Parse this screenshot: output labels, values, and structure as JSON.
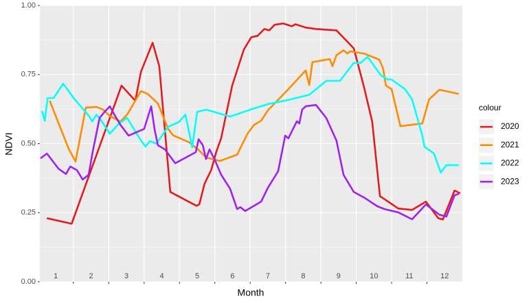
{
  "chart_data": {
    "type": "line",
    "x_label": "Month",
    "y_label": "NDVI",
    "legend_title": "colour",
    "legend": "right",
    "xlim": [
      0.55,
      12.5
    ],
    "xticks": [
      1,
      2,
      3,
      4,
      5,
      6,
      7,
      8,
      9,
      10,
      11,
      12
    ],
    "ylim": [
      0,
      1
    ],
    "yticks": [
      {
        "value": 0,
        "label": "0.00"
      },
      {
        "value": 0.25,
        "label": "0.25"
      },
      {
        "value": 0.5,
        "label": "0.50"
      },
      {
        "value": 0.75,
        "label": "0.75"
      },
      {
        "value": 1,
        "label": "1.00"
      }
    ],
    "grid": true,
    "series": [
      {
        "name": "2020",
        "color": "#e41a1c",
        "x": [
          0.75,
          1.45,
          2.86,
          3.25,
          3.41,
          3.74,
          3.93,
          4.24,
          4.98,
          5.06,
          5.21,
          5.4,
          5.54,
          5.68,
          5.99,
          6.32,
          6.53,
          6.71,
          6.9,
          7.04,
          7.19,
          7.43,
          7.68,
          7.78,
          8.07,
          8.36,
          8.94,
          9.43,
          9.72,
          9.95,
          10.17,
          10.4,
          10.69,
          11.08,
          11.47,
          11.82,
          11.95,
          12.28,
          12.44
        ],
        "values": [
          0.23,
          0.21,
          0.71,
          0.655,
          0.76,
          0.865,
          0.78,
          0.325,
          0.275,
          0.28,
          0.355,
          0.405,
          0.47,
          0.52,
          0.71,
          0.84,
          0.885,
          0.89,
          0.915,
          0.91,
          0.93,
          0.935,
          0.925,
          0.932,
          0.92,
          0.915,
          0.91,
          0.845,
          0.705,
          0.58,
          0.31,
          0.29,
          0.265,
          0.26,
          0.29,
          0.23,
          0.225,
          0.33,
          0.32
        ]
      },
      {
        "name": "2021",
        "color": "#ff8c00",
        "x": [
          0.83,
          1.37,
          1.56,
          1.85,
          2.15,
          2.34,
          2.53,
          2.83,
          3.02,
          3.41,
          3.6,
          3.89,
          4.18,
          4.32,
          4.77,
          5.06,
          5.25,
          5.64,
          6.13,
          6.42,
          6.61,
          6.81,
          7.0,
          7.58,
          8.07,
          8.17,
          8.26,
          8.75,
          8.83,
          8.94,
          9.14,
          9.25,
          9.33,
          9.72,
          10.15,
          10.26,
          10.34,
          10.5,
          10.75,
          11.37,
          11.56,
          11.85,
          12.4
        ],
        "values": [
          0.655,
          0.48,
          0.435,
          0.63,
          0.633,
          0.623,
          0.6,
          0.58,
          0.605,
          0.69,
          0.68,
          0.645,
          0.553,
          0.53,
          0.505,
          0.475,
          0.45,
          0.437,
          0.46,
          0.535,
          0.568,
          0.583,
          0.62,
          0.697,
          0.765,
          0.712,
          0.795,
          0.806,
          0.78,
          0.82,
          0.838,
          0.826,
          0.834,
          0.826,
          0.804,
          0.772,
          0.71,
          0.697,
          0.563,
          0.573,
          0.66,
          0.695,
          0.68
        ]
      },
      {
        "name": "2022",
        "color": "#00ffff",
        "x": [
          0.61,
          0.69,
          0.77,
          0.94,
          1.21,
          1.52,
          1.95,
          2.03,
          2.15,
          2.28,
          2.53,
          2.79,
          3.02,
          3.41,
          3.54,
          3.66,
          3.85,
          4.18,
          4.48,
          4.67,
          4.86,
          5.0,
          5.25,
          5.93,
          6.51,
          7.0,
          7.58,
          8.17,
          8.65,
          9.04,
          9.43,
          9.62,
          9.82,
          10.2,
          10.4,
          10.5,
          10.88,
          11.08,
          11.37,
          11.43,
          11.7,
          11.89,
          12.05,
          12.4
        ],
        "values": [
          0.618,
          0.583,
          0.665,
          0.665,
          0.717,
          0.663,
          0.598,
          0.58,
          0.605,
          0.585,
          0.536,
          0.573,
          0.593,
          0.511,
          0.489,
          0.509,
          0.5,
          0.561,
          0.578,
          0.605,
          0.486,
          0.615,
          0.623,
          0.598,
          0.623,
          0.643,
          0.658,
          0.677,
          0.727,
          0.727,
          0.792,
          0.792,
          0.814,
          0.747,
          0.732,
          0.732,
          0.697,
          0.66,
          0.529,
          0.489,
          0.464,
          0.395,
          0.422,
          0.422
        ]
      },
      {
        "name": "2023",
        "color": "#a020f0",
        "x": [
          0.57,
          0.75,
          1.08,
          1.29,
          1.41,
          1.6,
          1.76,
          1.93,
          2.05,
          2.24,
          2.38,
          2.53,
          2.69,
          2.83,
          3.06,
          3.5,
          3.7,
          3.8,
          3.89,
          4.09,
          4.38,
          4.96,
          5.04,
          5.16,
          5.25,
          5.35,
          5.49,
          5.68,
          5.93,
          6.13,
          6.22,
          6.36,
          6.81,
          7.0,
          7.29,
          7.49,
          7.58,
          7.82,
          7.89,
          7.97,
          8.07,
          8.36,
          8.65,
          8.94,
          9.14,
          9.43,
          9.72,
          10.1,
          10.3,
          10.69,
          11.08,
          11.47,
          11.85,
          12.05,
          12.28,
          12.4
        ],
        "values": [
          0.447,
          0.464,
          0.409,
          0.39,
          0.417,
          0.404,
          0.37,
          0.387,
          0.474,
          0.593,
          0.615,
          0.635,
          0.598,
          0.568,
          0.529,
          0.553,
          0.635,
          0.548,
          0.494,
          0.479,
          0.429,
          0.469,
          0.516,
          0.494,
          0.444,
          0.479,
          0.444,
          0.387,
          0.337,
          0.263,
          0.27,
          0.256,
          0.29,
          0.34,
          0.4,
          0.529,
          0.519,
          0.581,
          0.573,
          0.623,
          0.635,
          0.64,
          0.593,
          0.511,
          0.387,
          0.325,
          0.305,
          0.273,
          0.263,
          0.251,
          0.226,
          0.28,
          0.243,
          0.236,
          0.313,
          0.318
        ]
      }
    ]
  }
}
